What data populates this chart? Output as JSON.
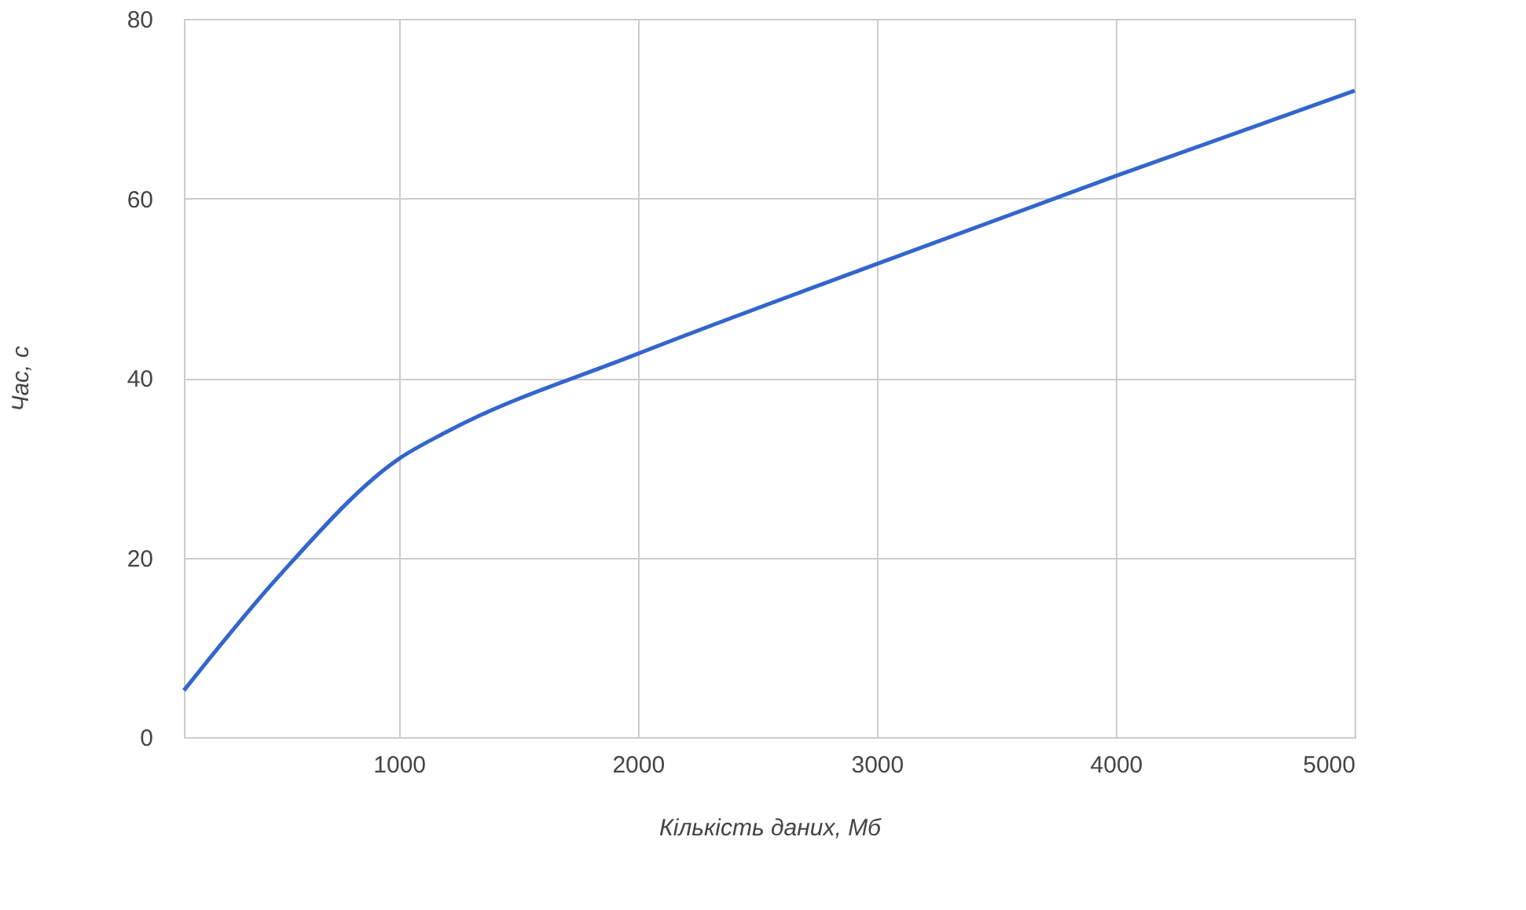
{
  "chart_data": {
    "type": "line",
    "xlabel": "Кількість даних, Мб",
    "ylabel": "Час, с",
    "x": [
      100,
      500,
      1000,
      1200,
      2000,
      3000,
      4000,
      5000
    ],
    "series": [
      {
        "color": "#3366cc",
        "values": [
          5.2,
          18,
          31,
          34,
          42.7,
          52.7,
          62.5,
          72
        ]
      }
    ],
    "xlim": [
      100,
      5000
    ],
    "xticks": [
      1000,
      2000,
      3000,
      4000,
      5000
    ],
    "ylim": [
      0,
      80
    ],
    "yticks": [
      0,
      20,
      40,
      60,
      80
    ],
    "grid": true,
    "marker": "none",
    "line_style": "solid"
  }
}
